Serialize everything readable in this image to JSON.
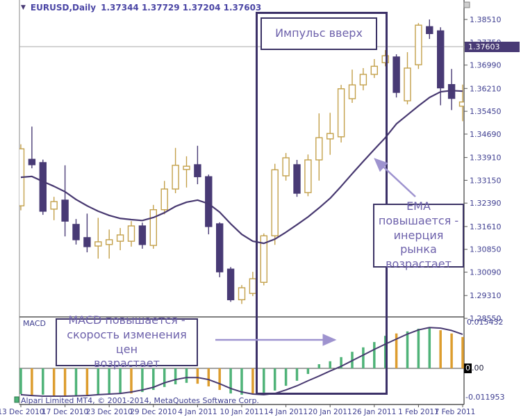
{
  "title_bar": {
    "symbol": "EURUSD,Daily",
    "ohlc_quote": "1.37344 1.37729 1.37204 1.37603",
    "dropdown_icon": "triangle-down"
  },
  "annotations": {
    "impulse_box_text": "Импульс вверх",
    "ema_box_lines": [
      "EMA",
      "повышается -",
      "инерция рынка",
      "возрастает"
    ],
    "macd_box_lines": [
      "MACD повышается -",
      "скорость изменения цен",
      "возрастает"
    ]
  },
  "watermark": "Alpari Limited MT4, © 2001-2014, MetaQuotes Software Corp.",
  "indicator_label": "MACD",
  "price_axis": {
    "current_badge": "1.37603",
    "zero_badge_box": "0",
    "zero_badge_rest": ".00",
    "macd_top_label": "0.015432",
    "macd_bottom_label": "-0.011953"
  },
  "colors": {
    "bull_candle": "#c3a04a",
    "bear_candle": "#483a75",
    "ema_line": "#473870",
    "macd_signal": "#473870",
    "hist_green": "#4fb378",
    "hist_orange": "#dd9d2e",
    "axis_text": "#3e3e90",
    "arrow": "#9e93cf",
    "annotation_border": "#3a3264",
    "annotation_text": "#6d61ab",
    "badge_bg": "#483a75",
    "bid_line": "#aaaaaa"
  },
  "chart_data": {
    "type": "candlestick+macd",
    "symbol": "EURUSD",
    "timeframe": "Daily",
    "current_price": 1.37603,
    "price_ticks": [
      {
        "label": "1.38510",
        "value": 1.3851
      },
      {
        "label": "1.37750",
        "value": 1.3775
      },
      {
        "label": "1.36990",
        "value": 1.3699
      },
      {
        "label": "1.36210",
        "value": 1.3621
      },
      {
        "label": "1.35450",
        "value": 1.3545
      },
      {
        "label": "1.34690",
        "value": 1.3469
      },
      {
        "label": "1.33910",
        "value": 1.3391
      },
      {
        "label": "1.33150",
        "value": 1.3315
      },
      {
        "label": "1.32390",
        "value": 1.3239
      },
      {
        "label": "1.31610",
        "value": 1.3161
      },
      {
        "label": "1.30850",
        "value": 1.3085
      },
      {
        "label": "1.30090",
        "value": 1.3009
      },
      {
        "label": "1.29310",
        "value": 1.2931
      },
      {
        "label": "1.28550",
        "value": 1.2855
      }
    ],
    "time_axis": {
      "labels": [
        "13 Dec 2010",
        "17 Dec 2010",
        "23 Dec 2010",
        "29 Dec 2010",
        "4 Jan 2011",
        "10 Jan 2011",
        "14 Jan 2011",
        "20 Jan 2011",
        "26 Jan 2011",
        "1 Feb 2011",
        "7 Feb 2011"
      ],
      "positions": [
        0,
        4,
        8,
        12,
        16,
        20,
        24,
        28,
        32,
        36,
        40
      ]
    },
    "candles": [
      [
        1.323,
        1.3435,
        1.3215,
        1.342
      ],
      [
        1.3385,
        1.3494,
        1.3355,
        1.3367
      ],
      [
        1.3374,
        1.3384,
        1.32,
        1.3212
      ],
      [
        1.3219,
        1.326,
        1.3182,
        1.3244
      ],
      [
        1.3249,
        1.3365,
        1.3128,
        1.3179
      ],
      [
        1.3168,
        1.3186,
        1.3101,
        1.3117
      ],
      [
        1.3124,
        1.3204,
        1.3075,
        1.3094
      ],
      [
        1.3096,
        1.319,
        1.3054,
        1.311
      ],
      [
        1.3101,
        1.3151,
        1.3054,
        1.3117
      ],
      [
        1.3112,
        1.3156,
        1.3082,
        1.3133
      ],
      [
        1.3112,
        1.3179,
        1.3094,
        1.3163
      ],
      [
        1.3163,
        1.3174,
        1.3087,
        1.3101
      ],
      [
        1.3098,
        1.3233,
        1.3087,
        1.3217
      ],
      [
        1.3217,
        1.3313,
        1.3202,
        1.3286
      ],
      [
        1.3286,
        1.3423,
        1.3272,
        1.3365
      ],
      [
        1.3351,
        1.3395,
        1.3291,
        1.3362
      ],
      [
        1.3367,
        1.343,
        1.3302,
        1.3327
      ],
      [
        1.3327,
        1.3334,
        1.3135,
        1.3161
      ],
      [
        1.317,
        1.3175,
        1.2992,
        1.301
      ],
      [
        1.3019,
        1.3026,
        1.291,
        1.2917
      ],
      [
        1.2917,
        1.2966,
        1.2903,
        1.2957
      ],
      [
        1.2938,
        1.301,
        1.2929,
        1.2987
      ],
      [
        1.2975,
        1.3138,
        1.2965,
        1.313
      ],
      [
        1.313,
        1.337,
        1.31,
        1.335
      ],
      [
        1.333,
        1.3406,
        1.3314,
        1.339
      ],
      [
        1.3367,
        1.3383,
        1.326,
        1.3272
      ],
      [
        1.3274,
        1.3401,
        1.3262,
        1.3383
      ],
      [
        1.3383,
        1.3538,
        1.3314,
        1.3457
      ],
      [
        1.3453,
        1.354,
        1.34,
        1.3471
      ],
      [
        1.346,
        1.3633,
        1.3441,
        1.362
      ],
      [
        1.3587,
        1.3684,
        1.3573,
        1.3633
      ],
      [
        1.3633,
        1.3689,
        1.3615,
        1.3668
      ],
      [
        1.3668,
        1.3719,
        1.3656,
        1.3695
      ],
      [
        1.3707,
        1.3749,
        1.3695,
        1.373
      ],
      [
        1.3726,
        1.3735,
        1.3591,
        1.3608
      ],
      [
        1.358,
        1.3742,
        1.3568,
        1.3689
      ],
      [
        1.37,
        1.3839,
        1.3686,
        1.3832
      ],
      [
        1.3827,
        1.3851,
        1.3786,
        1.3804
      ],
      [
        1.3813,
        1.3825,
        1.3565,
        1.3623
      ],
      [
        1.3634,
        1.3686,
        1.3549,
        1.3588
      ],
      [
        1.3562,
        1.3634,
        1.3512,
        1.3576
      ]
    ],
    "ema": [
      1.3325,
      1.3328,
      1.3311,
      1.3295,
      1.3277,
      1.3251,
      1.323,
      1.3212,
      1.3198,
      1.3188,
      1.3184,
      1.3181,
      1.3191,
      1.3207,
      1.3228,
      1.3242,
      1.3249,
      1.3237,
      1.3209,
      1.317,
      1.3135,
      1.3112,
      1.3105,
      1.3119,
      1.3142,
      1.3167,
      1.3193,
      1.3223,
      1.3255,
      1.3295,
      1.3337,
      1.3378,
      1.3418,
      1.3457,
      1.3503,
      1.3533,
      1.3563,
      1.3591,
      1.361,
      1.3614,
      1.3612
    ],
    "macd_hist": [
      -0.0087,
      -0.0092,
      -0.0089,
      -0.0092,
      -0.0094,
      -0.0092,
      -0.0094,
      -0.0089,
      -0.0087,
      -0.0085,
      -0.0085,
      -0.008,
      -0.0073,
      -0.0063,
      -0.0054,
      -0.0049,
      -0.0052,
      -0.0061,
      -0.0073,
      -0.0085,
      -0.0089,
      -0.0085,
      -0.0082,
      -0.0075,
      -0.0059,
      -0.0042,
      -0.0019,
      0.0014,
      0.0024,
      0.0038,
      0.0056,
      0.0071,
      0.0089,
      0.011,
      0.0118,
      0.0125,
      0.0134,
      0.0136,
      0.0129,
      0.0118,
      0.0106
    ],
    "macd_hist_colors": [
      "g",
      "o",
      "g",
      "o",
      "o",
      "g",
      "o",
      "g",
      "g",
      "g",
      "o",
      "g",
      "g",
      "g",
      "g",
      "g",
      "o",
      "o",
      "o",
      "g",
      "g",
      "o",
      "g",
      "g",
      "g",
      "g",
      "g",
      "g",
      "g",
      "g",
      "g",
      "g",
      "g",
      "g",
      "o",
      "g",
      "g",
      "g",
      "o",
      "o",
      "o"
    ],
    "macd_signal": [
      -0.0089,
      -0.0092,
      -0.0094,
      -0.0094,
      -0.0094,
      -0.0093,
      -0.0092,
      -0.0089,
      -0.0087,
      -0.0085,
      -0.008,
      -0.0073,
      -0.0064,
      -0.0049,
      -0.0038,
      -0.0031,
      -0.0031,
      -0.0038,
      -0.0052,
      -0.0068,
      -0.008,
      -0.0087,
      -0.0089,
      -0.0085,
      -0.0073,
      -0.0059,
      -0.0042,
      -0.0026,
      -0.0009,
      0.0007,
      0.0026,
      0.0045,
      0.0064,
      0.0082,
      0.0099,
      0.0116,
      0.013,
      0.0138,
      0.0136,
      0.0128,
      0.0115
    ],
    "macd_range": {
      "top": 0.015432,
      "bottom": -0.011953
    }
  }
}
